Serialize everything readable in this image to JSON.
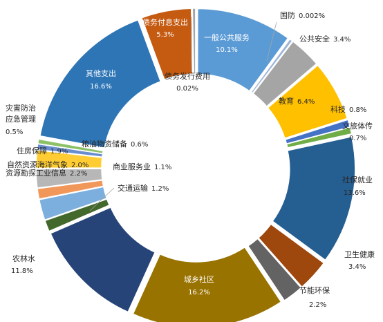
{
  "chart_data": {
    "type": "pie",
    "variant": "donut",
    "title": "",
    "legend": "none",
    "slices": [
      {
        "name": "一般公共服务",
        "value": 10.1,
        "label": "10.1%",
        "color": "#5b9bd5"
      },
      {
        "name": "国防",
        "value": 0.002,
        "label": "0.002%",
        "color": "#9ab4d8"
      },
      {
        "name": "公共安全",
        "value": 3.4,
        "label": "3.4%",
        "color": "#a5a5a5"
      },
      {
        "name": "教育",
        "value": 6.4,
        "label": "6.4%",
        "color": "#ffc000"
      },
      {
        "name": "科技",
        "value": 0.8,
        "label": "0.8%",
        "color": "#4472c4"
      },
      {
        "name": "文旅体传",
        "value": 0.7,
        "label": "0.7%",
        "color": "#70ad47"
      },
      {
        "name": "社保就业",
        "value": 13.6,
        "label": "13.6%",
        "color": "#255e91"
      },
      {
        "name": "卫生健康",
        "value": 3.4,
        "label": "3.4%",
        "color": "#9e480e"
      },
      {
        "name": "节能环保",
        "value": 2.2,
        "label": "2.2%",
        "color": "#636363"
      },
      {
        "name": "城乡社区",
        "value": 16.2,
        "label": "16.2%",
        "color": "#997300"
      },
      {
        "name": "农林水",
        "value": 11.8,
        "label": "11.8%",
        "color": "#264478"
      },
      {
        "name": "交通运输",
        "value": 1.2,
        "label": "1.2%",
        "color": "#43682b"
      },
      {
        "name": "资源勘探工业信息",
        "value": 2.2,
        "label": "2.2%",
        "color": "#7cafdd"
      },
      {
        "name": "商业服务业",
        "value": 1.1,
        "label": "1.1%",
        "color": "#f1975a"
      },
      {
        "name": "自然资源海洋气象",
        "value": 2.0,
        "label": "2.0%",
        "color": "#b7b7b7"
      },
      {
        "name": "住房保障",
        "value": 1.9,
        "label": "1.9%",
        "color": "#ffcd33"
      },
      {
        "name": "粮油物资储备",
        "value": 0.6,
        "label": "0.6%",
        "color": "#698ed0"
      },
      {
        "name": "灾害防治\n应急管理",
        "value": 0.5,
        "label": "0.5%",
        "color": "#8cc168"
      },
      {
        "name": "其他支出",
        "value": 16.6,
        "label": "16.6%",
        "color": "#2e75b6"
      },
      {
        "name": "债务付息支出",
        "value": 5.3,
        "label": "5.3%",
        "color": "#c55a11"
      },
      {
        "name": "债务发行费用",
        "value": 0.02,
        "label": "0.02%",
        "color": "#a5a5a5"
      }
    ]
  }
}
